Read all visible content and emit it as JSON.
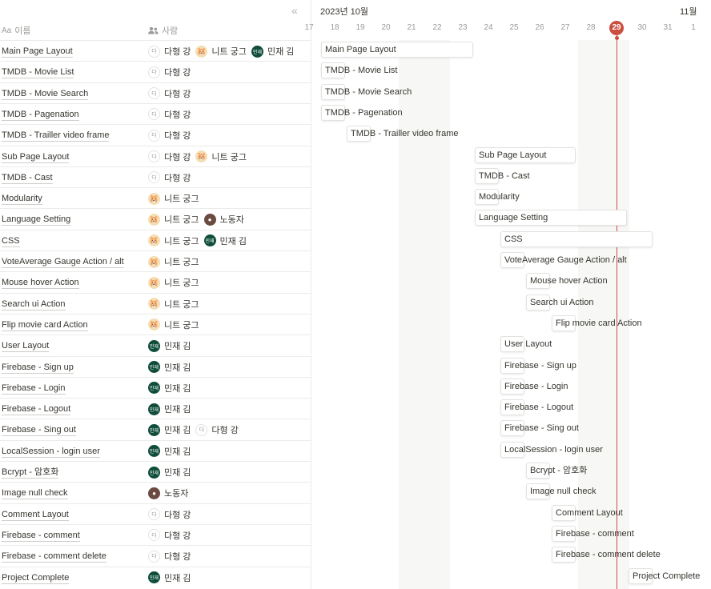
{
  "header": {
    "name_col": "이름",
    "name_icon_text": "Aa",
    "people_col": "사람",
    "collapse_glyph": "«"
  },
  "timeline": {
    "month_current": "2023년 10월",
    "month_next": "11월",
    "days": [
      "17",
      "18",
      "19",
      "20",
      "21",
      "22",
      "23",
      "24",
      "25",
      "26",
      "27",
      "28",
      "29",
      "30",
      "31",
      "1"
    ],
    "today": "29"
  },
  "people_defs": {
    "kang": {
      "name": "다형 강",
      "initial": "다",
      "avatar": "text"
    },
    "gung": {
      "name": "니트 궁그",
      "initial": "🐹",
      "avatar": "cat"
    },
    "kim": {
      "name": "민재 김",
      "initial": "민재",
      "avatar": "green"
    },
    "noh": {
      "name": "노동자",
      "initial": "●",
      "avatar": "photo"
    }
  },
  "rows": [
    {
      "name": "Main Page Layout",
      "people": [
        "kang",
        "gung",
        "kim"
      ],
      "start": 18,
      "end": 23
    },
    {
      "name": "TMDB - Movie List",
      "people": [
        "kang"
      ],
      "start": 18,
      "end": 18
    },
    {
      "name": "TMDB - Movie Search",
      "people": [
        "kang"
      ],
      "start": 18,
      "end": 18
    },
    {
      "name": "TMDB - Pagenation",
      "people": [
        "kang"
      ],
      "start": 18,
      "end": 18
    },
    {
      "name": "TMDB - Trailler video frame",
      "people": [
        "kang"
      ],
      "start": 19,
      "end": 19
    },
    {
      "name": "Sub Page Layout",
      "people": [
        "kang",
        "gung"
      ],
      "start": 24,
      "end": 27
    },
    {
      "name": "TMDB - Cast",
      "people": [
        "kang"
      ],
      "start": 24,
      "end": 24
    },
    {
      "name": "Modularity",
      "people": [
        "gung"
      ],
      "start": 24,
      "end": 24
    },
    {
      "name": "Language Setting",
      "people": [
        "gung",
        "noh"
      ],
      "start": 24,
      "end": 29
    },
    {
      "name": "CSS",
      "people": [
        "gung",
        "kim"
      ],
      "start": 25,
      "end": 30
    },
    {
      "name": "VoteAverage Gauge Action / alt",
      "people": [
        "gung"
      ],
      "start": 25,
      "end": 25
    },
    {
      "name": "Mouse hover Action",
      "people": [
        "gung"
      ],
      "start": 26,
      "end": 26
    },
    {
      "name": "Search ui Action",
      "people": [
        "gung"
      ],
      "start": 26,
      "end": 26
    },
    {
      "name": "Flip movie card Action",
      "people": [
        "gung"
      ],
      "start": 27,
      "end": 27
    },
    {
      "name": "User Layout",
      "people": [
        "kim"
      ],
      "start": 25,
      "end": 25
    },
    {
      "name": "Firebase - Sign up",
      "people": [
        "kim"
      ],
      "start": 25,
      "end": 25
    },
    {
      "name": "Firebase - Login",
      "people": [
        "kim"
      ],
      "start": 25,
      "end": 25
    },
    {
      "name": "Firebase - Logout",
      "people": [
        "kim"
      ],
      "start": 25,
      "end": 25
    },
    {
      "name": "Firebase - Sing out",
      "people": [
        "kim",
        "kang"
      ],
      "start": 25,
      "end": 25
    },
    {
      "name": "LocalSession - login user",
      "people": [
        "kim"
      ],
      "start": 25,
      "end": 25
    },
    {
      "name": "Bcrypt - 암호화",
      "people": [
        "kim"
      ],
      "start": 26,
      "end": 26
    },
    {
      "name": "Image null check",
      "people": [
        "noh"
      ],
      "start": 26,
      "end": 26
    },
    {
      "name": "Comment Layout",
      "people": [
        "kang"
      ],
      "start": 27,
      "end": 27
    },
    {
      "name": "Firebase - comment",
      "people": [
        "kang"
      ],
      "start": 27,
      "end": 27
    },
    {
      "name": "Firebase - comment delete",
      "people": [
        "kang"
      ],
      "start": 27,
      "end": 27
    },
    {
      "name": "Project Complete",
      "people": [
        "kim"
      ],
      "start": 30,
      "end": 30
    }
  ]
}
